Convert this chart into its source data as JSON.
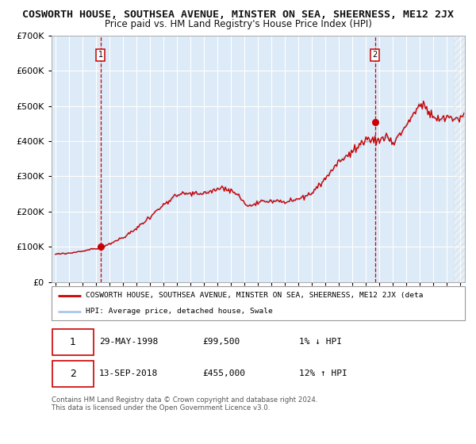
{
  "title": "COSWORTH HOUSE, SOUTHSEA AVENUE, MINSTER ON SEA, SHEERNESS, ME12 2JX",
  "subtitle": "Price paid vs. HM Land Registry's House Price Index (HPI)",
  "sale1_label": "29-MAY-1998",
  "sale1_price": 99500,
  "sale1_price_str": "£99,500",
  "sale2_label": "13-SEP-2018",
  "sale2_price": 455000,
  "sale2_price_str": "£455,000",
  "legend_property": "COSWORTH HOUSE, SOUTHSEA AVENUE, MINSTER ON SEA, SHEERNESS, ME12 2JX (deta",
  "legend_hpi": "HPI: Average price, detached house, Swale",
  "annotation1": "1% ↓ HPI",
  "annotation2": "12% ↑ HPI",
  "footnote1": "Contains HM Land Registry data © Crown copyright and database right 2024.",
  "footnote2": "This data is licensed under the Open Government Licence v3.0.",
  "ylim_max": 700000,
  "ylim_min": 0,
  "xmin": 1994.7,
  "xmax": 2025.3,
  "hatch_start": 2024.5,
  "red_color": "#cc0000",
  "blue_color": "#aac8e8",
  "bg_color": "#ddeaf7",
  "grid_color": "#ffffff",
  "vline_color": "#cc0000",
  "title_fontsize": 9.5,
  "subtitle_fontsize": 8.5
}
